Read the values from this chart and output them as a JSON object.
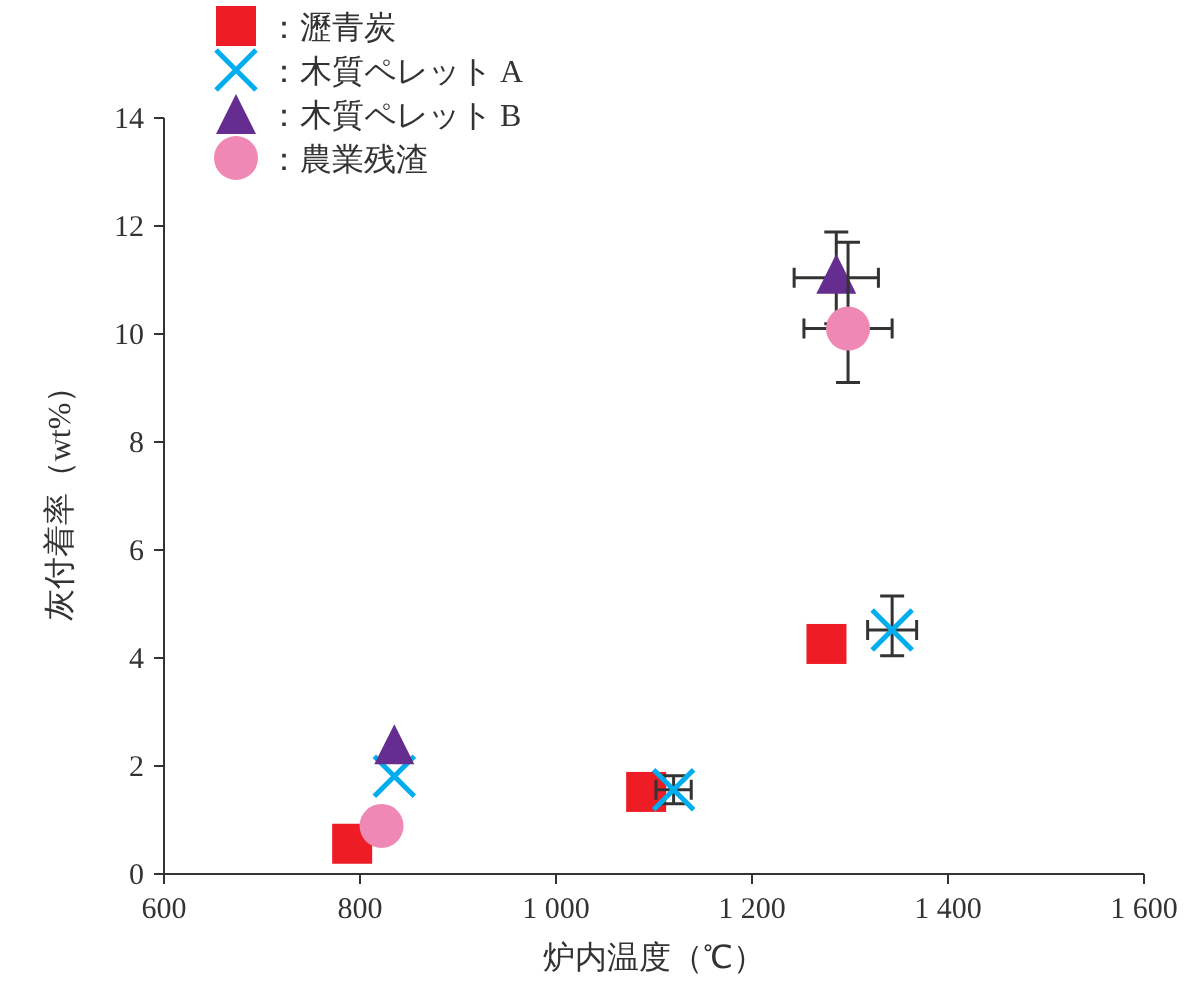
{
  "chart_data": {
    "type": "scatter",
    "xlabel": "炉内温度（℃）",
    "ylabel": "灰付着率（wt%）",
    "xlim": [
      600,
      1600
    ],
    "ylim": [
      0,
      14
    ],
    "xticks": [
      {
        "value": 600,
        "label": "600"
      },
      {
        "value": 800,
        "label": "800"
      },
      {
        "value": 1000,
        "label": "1 000"
      },
      {
        "value": 1200,
        "label": "1 200"
      },
      {
        "value": 1400,
        "label": "1 400"
      },
      {
        "value": 1600,
        "label": "1 600"
      }
    ],
    "yticks": [
      0,
      2,
      4,
      6,
      8,
      10,
      12,
      14
    ],
    "grid": false,
    "legend": "top left",
    "series": [
      {
        "name": "：瀝青炭",
        "color": "#ee1c25",
        "marker": "square",
        "x": [
          792,
          1092,
          1276
        ],
        "values": [
          0.56,
          1.52,
          4.26
        ]
      },
      {
        "name": "：木質ペレット A",
        "color": "#00aeef",
        "marker": "cross",
        "x": [
          835,
          1120,
          1343
        ],
        "values": [
          1.81,
          1.56,
          4.52
        ],
        "errors": [
          null,
          0.26,
          [
            4.04,
            5.15
          ]
        ],
        "xerrors": [
          null,
          18,
          25
        ]
      },
      {
        "name": "：木質ペレット B",
        "color": "#662d91",
        "marker": "triangle",
        "x": [
          835,
          1286
        ],
        "values": [
          2.33,
          11.04
        ],
        "errors": [
          null,
          0.85
        ],
        "xerrors": [
          null,
          43
        ]
      },
      {
        "name": "：農業残渣",
        "color": "#f088b6",
        "marker": "circle",
        "x": [
          822,
          1298
        ],
        "values": [
          0.89,
          10.1
        ],
        "errors": [
          null,
          [
            9.1,
            11.7
          ]
        ],
        "xerrors": [
          null,
          45
        ]
      }
    ]
  }
}
